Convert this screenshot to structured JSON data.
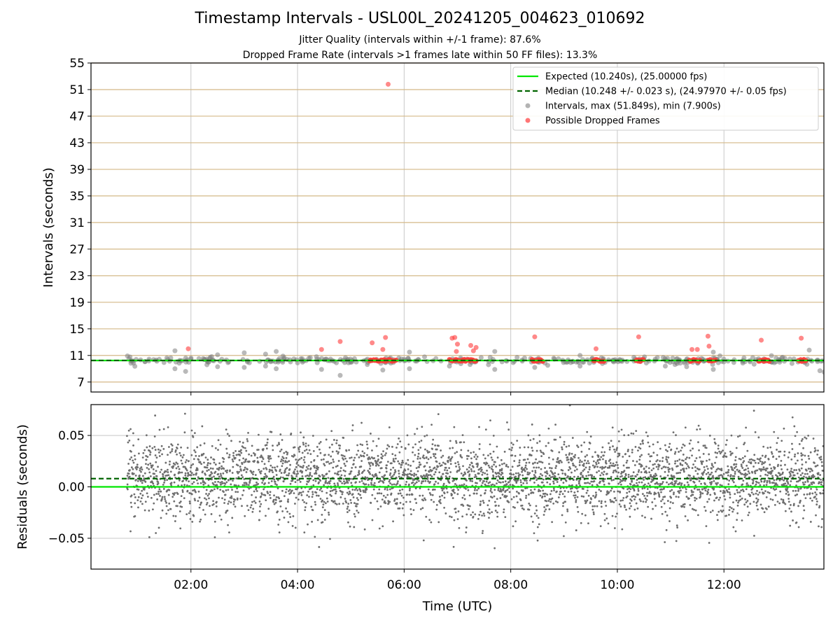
{
  "chart_data": [
    {
      "type": "scatter",
      "title": "Timestamp Intervals - USL00L_20241205_004623_010692",
      "subtitles": [
        "Jitter Quality (intervals within +/-1 frame): 87.6%",
        "Dropped Frame Rate (intervals >1 frames late within 50 FF files): 13.3%"
      ],
      "ylabel": "Intervals (seconds)",
      "xlabel": "",
      "xlim": [
        0.125,
        13.875
      ],
      "ylim": [
        5.5,
        55
      ],
      "yticks": [
        "7",
        "11",
        "15",
        "19",
        "23",
        "27",
        "31",
        "35",
        "39",
        "43",
        "47",
        "51",
        "55"
      ],
      "xticks": [
        "02:00",
        "04:00",
        "06:00",
        "08:00",
        "10:00",
        "12:00"
      ],
      "grid": true,
      "legend_position": "upper-right",
      "legend": [
        "Expected (10.240s), (25.00000 fps)",
        "Median (10.248 +/- 0.023 s), (24.97970 +/- 0.05 fps)",
        "Intervals, max (51.849s), min (7.900s)",
        "Possible Dropped Frames"
      ],
      "expected": 10.24,
      "median": 10.248,
      "series": [
        {
          "name": "Possible Dropped Frames",
          "points": [
            [
              1.95,
              12.0
            ],
            [
              4.45,
              11.9
            ],
            [
              4.8,
              13.1
            ],
            [
              5.4,
              12.9
            ],
            [
              5.6,
              11.9
            ],
            [
              5.65,
              13.7
            ],
            [
              5.7,
              51.8
            ],
            [
              6.9,
              13.6
            ],
            [
              6.95,
              13.7
            ],
            [
              6.98,
              11.6
            ],
            [
              7.0,
              12.7
            ],
            [
              7.25,
              12.5
            ],
            [
              7.35,
              12.2
            ],
            [
              7.3,
              11.7
            ],
            [
              8.45,
              13.8
            ],
            [
              9.6,
              12.0
            ],
            [
              10.4,
              13.8
            ],
            [
              11.4,
              11.9
            ],
            [
              11.5,
              11.9
            ],
            [
              11.7,
              13.9
            ],
            [
              11.72,
              12.4
            ],
            [
              12.7,
              13.3
            ],
            [
              13.45,
              13.6
            ]
          ]
        },
        {
          "name": "Intervals",
          "points": [
            [
              1.7,
              11.7
            ],
            [
              1.7,
              9.0
            ],
            [
              1.9,
              8.6
            ],
            [
              2.3,
              9.6
            ],
            [
              2.5,
              11.1
            ],
            [
              2.5,
              9.3
            ],
            [
              3.0,
              11.4
            ],
            [
              3.0,
              9.2
            ],
            [
              3.4,
              11.2
            ],
            [
              3.4,
              9.4
            ],
            [
              3.6,
              11.6
            ],
            [
              3.6,
              9.0
            ],
            [
              4.45,
              8.9
            ],
            [
              4.8,
              8.0
            ],
            [
              5.6,
              8.8
            ],
            [
              6.1,
              11.5
            ],
            [
              6.1,
              9.0
            ],
            [
              6.85,
              9.4
            ],
            [
              7.7,
              11.6
            ],
            [
              7.7,
              8.9
            ],
            [
              8.45,
              9.2
            ],
            [
              9.3,
              11.0
            ],
            [
              9.3,
              9.4
            ],
            [
              10.9,
              9.4
            ],
            [
              11.3,
              9.3
            ],
            [
              11.8,
              11.5
            ],
            [
              11.8,
              8.9
            ],
            [
              13.6,
              11.8
            ],
            [
              13.8,
              8.7
            ],
            [
              13.88,
              8.5
            ]
          ]
        }
      ]
    },
    {
      "type": "scatter",
      "title": "",
      "xlabel": "Time (UTC)",
      "ylabel": "Residuals (seconds)",
      "xlim": [
        0.125,
        13.875
      ],
      "ylim": [
        -0.08,
        0.08
      ],
      "yticks": [
        "−0.05",
        "0.00",
        "0.05"
      ],
      "xticks": [
        "02:00",
        "04:00",
        "06:00",
        "08:00",
        "10:00",
        "12:00"
      ],
      "grid": true,
      "expected": 0.0,
      "median": 0.008,
      "series": [
        {
          "name": "Residuals",
          "spread_sd": 0.02,
          "x_range": [
            0.8,
            13.875
          ]
        }
      ]
    }
  ],
  "colors": {
    "expected": "#00e600",
    "median": "#006400",
    "intervals": "#808080",
    "dropped": "#ff3b3b",
    "h_grid": "#d4b887",
    "grid": "#c8c8c8"
  }
}
